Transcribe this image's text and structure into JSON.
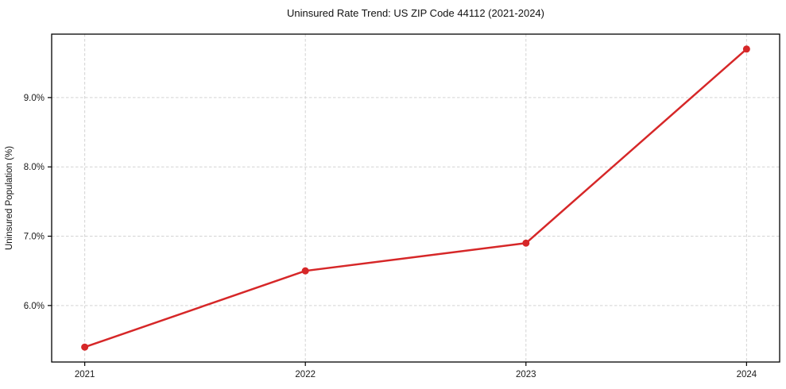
{
  "chart_data": {
    "type": "line",
    "title": "Uninsured Rate Trend: US ZIP Code 44112 (2021-2024)",
    "xlabel": "",
    "ylabel": "Uninsured Population (%)",
    "x": [
      2021,
      2022,
      2023,
      2024
    ],
    "series": [
      {
        "name": "Uninsured Population",
        "values": [
          5.4,
          6.5,
          6.9,
          9.7
        ]
      }
    ],
    "xticks": {
      "values": [
        2021,
        2022,
        2023,
        2024
      ],
      "labels": [
        "2021",
        "2022",
        "2023",
        "2024"
      ]
    },
    "yticks": {
      "values": [
        6.0,
        7.0,
        8.0,
        9.0
      ],
      "labels": [
        "6.0%",
        "7.0%",
        "8.0%",
        "9.0%"
      ]
    },
    "xlim": [
      2020.85,
      2024.15
    ],
    "ylim": [
      5.185,
      9.915
    ],
    "grid": true,
    "grid_style": "dashed",
    "legend": false,
    "colors": {
      "line": "#d62728",
      "marker": "#d62728",
      "grid": "#d3d3d3",
      "spine": "#000000",
      "text": "#1a1a1a"
    }
  }
}
